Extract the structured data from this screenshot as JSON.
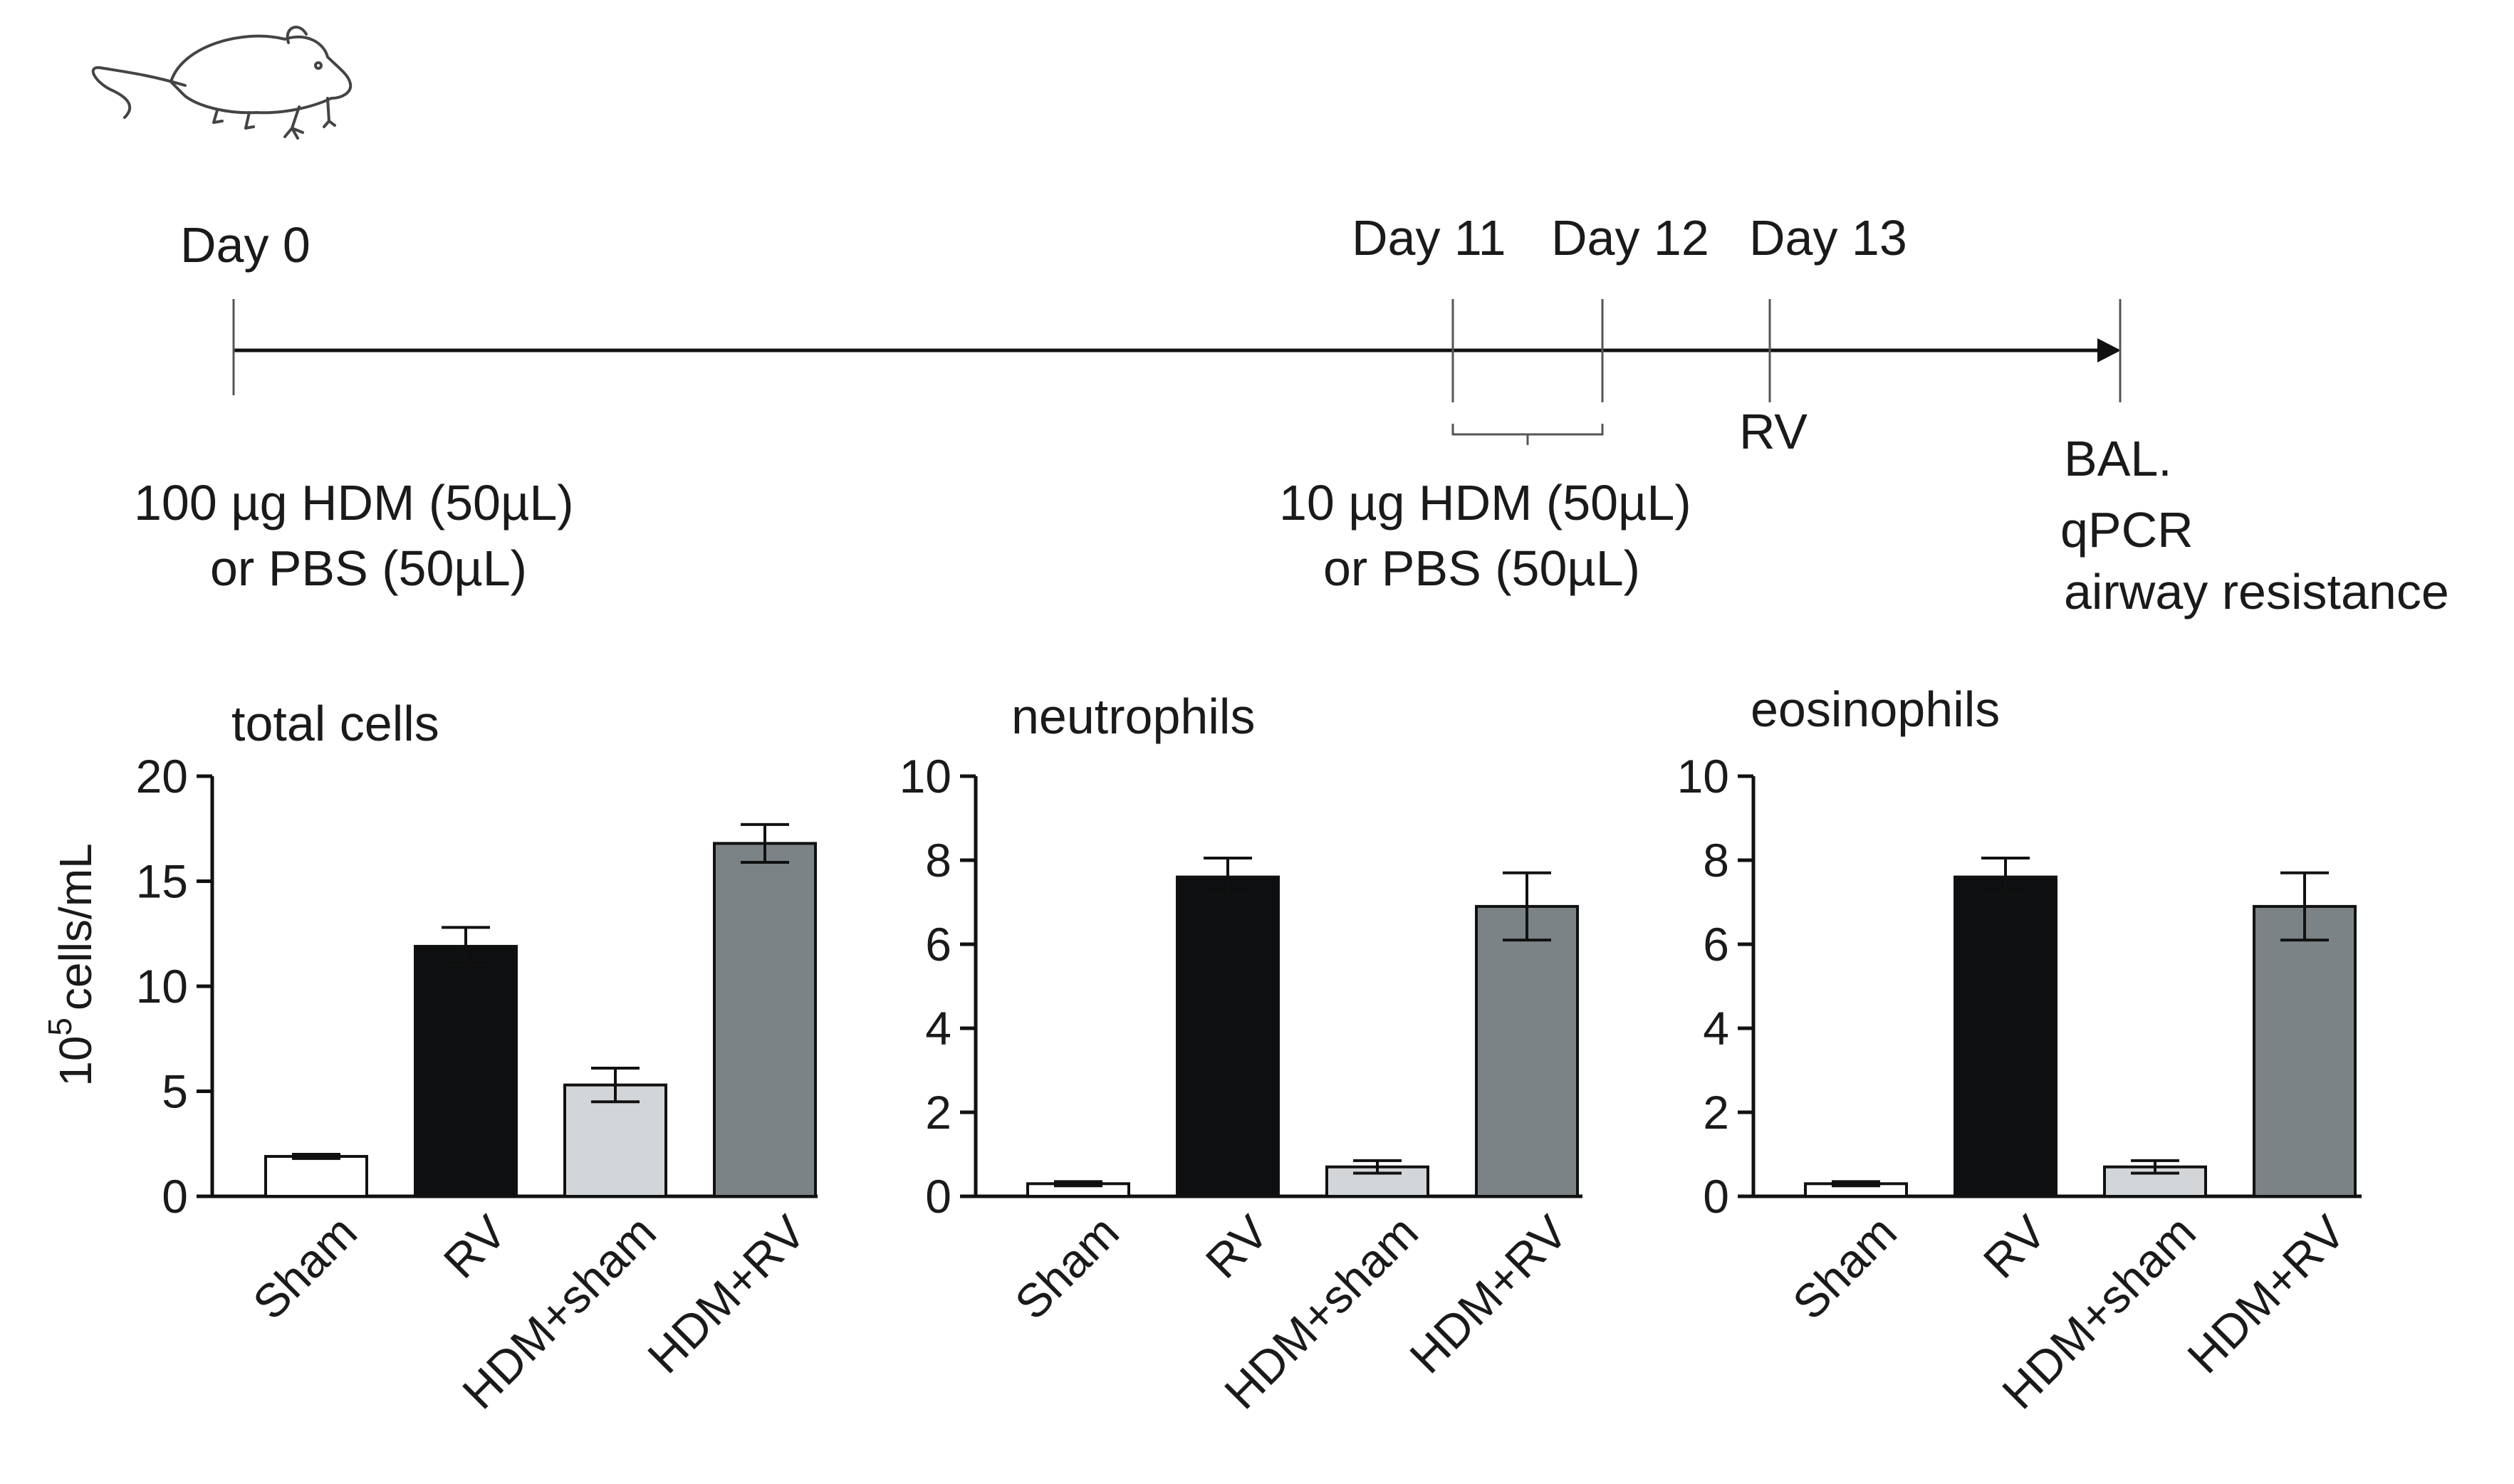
{
  "timeline": {
    "days": [
      "Day 0",
      "Day 11",
      "Day 12",
      "Day 13"
    ],
    "rv_label": "RV",
    "dose_day0": [
      "100 µg HDM (50µL)",
      "or PBS (50µL)"
    ],
    "dose_day11": [
      "10 µg HDM (50µL)",
      "or PBS (50µL)"
    ],
    "endpoint": [
      "BAL.",
      "qPCR",
      "airway resistance"
    ]
  },
  "colors": {
    "sham": "#ffffff",
    "rv": "#0d0f10",
    "hdm_sham": "#d3d6d8",
    "hdm_rv": "#7b8386",
    "axis": "#111111"
  },
  "chart_data": [
    {
      "type": "bar",
      "title": "total cells",
      "ylabel": "10^5 cells/mL",
      "ylabel_base": "10",
      "ylabel_exp": "5",
      "ylabel_rest": "cells/mL",
      "categories": [
        "Sham",
        "RV",
        "HDM+sham",
        "HDM+RV"
      ],
      "values": [
        1.9,
        11.9,
        5.3,
        16.8
      ],
      "errors": [
        0.1,
        0.9,
        0.8,
        0.9
      ],
      "ylim": [
        0,
        20
      ],
      "yticks": [
        0,
        5,
        10,
        15,
        20
      ]
    },
    {
      "type": "bar",
      "title": "neutrophils",
      "ylabel": "",
      "categories": [
        "Sham",
        "RV",
        "HDM+sham",
        "HDM+RV"
      ],
      "values": [
        0.3,
        7.6,
        0.7,
        6.9
      ],
      "errors": [
        0.05,
        0.45,
        0.15,
        0.8
      ],
      "ylim": [
        0,
        10
      ],
      "yticks": [
        0,
        2,
        4,
        6,
        8,
        10
      ]
    },
    {
      "type": "bar",
      "title": "eosinophils",
      "ylabel": "",
      "categories": [
        "Sham",
        "RV",
        "HDM+sham",
        "HDM+RV"
      ],
      "values": [
        0.3,
        7.6,
        0.7,
        6.9
      ],
      "errors": [
        0.05,
        0.45,
        0.15,
        0.8
      ],
      "ylim": [
        0,
        10
      ],
      "yticks": [
        0,
        2,
        4,
        6,
        8,
        10
      ]
    }
  ]
}
